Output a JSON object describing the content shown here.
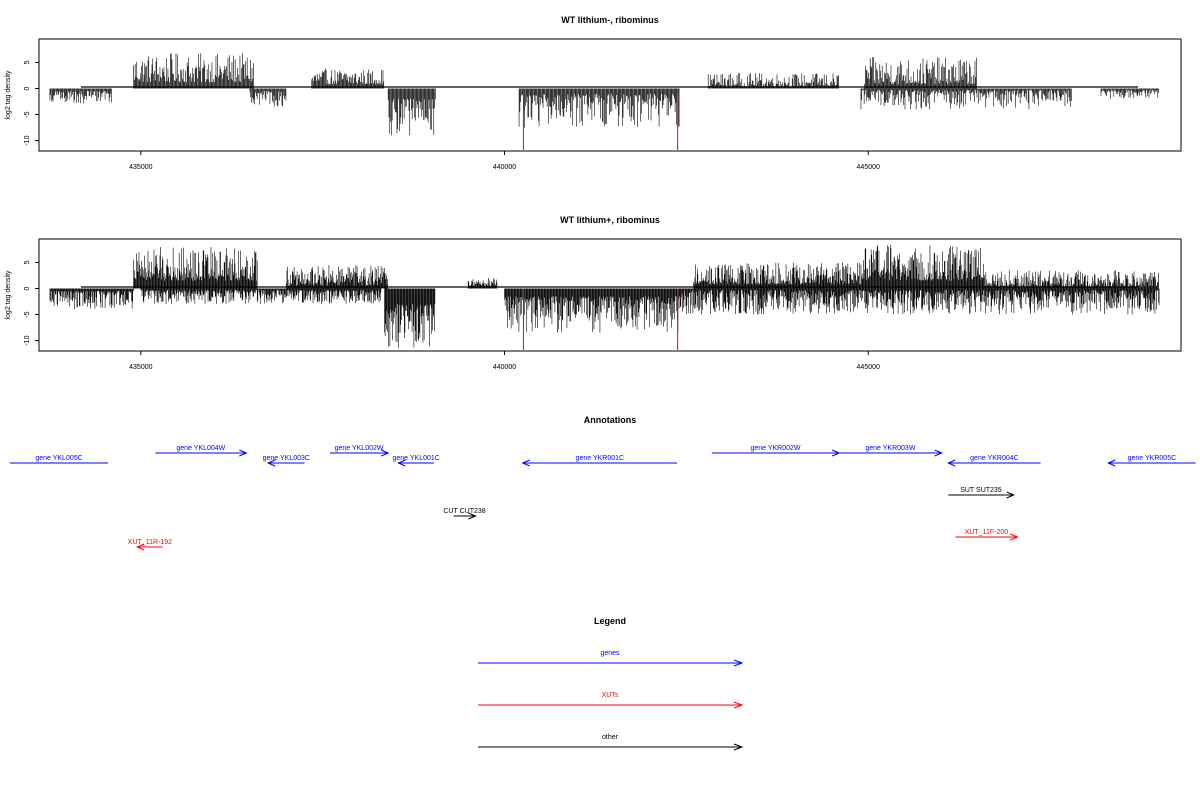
{
  "chart_data": [
    {
      "type": "bar",
      "title": "WT lithium-, ribominus",
      "ylabel": "log2 tag density",
      "xlim": [
        433600,
        449300
      ],
      "ylim": [
        -12,
        9.5
      ],
      "xticks": [
        435000,
        440000,
        445000
      ],
      "yticks": [
        5,
        0,
        -5,
        -10
      ],
      "x_tick_labels": [
        "435000",
        "440000",
        "445000"
      ],
      "y_tick_labels": [
        "5",
        "0",
        "-5",
        "-10"
      ],
      "profile": {
        "positive": [
          {
            "start": 434900,
            "end": 436550,
            "min": 1.2,
            "max": 6.8
          },
          {
            "start": 437350,
            "end": 438350,
            "min": 0.8,
            "max": 3.8
          },
          {
            "start": 442800,
            "end": 444600,
            "min": 0.4,
            "max": 3.0
          },
          {
            "start": 444950,
            "end": 446500,
            "min": 0.8,
            "max": 6.0
          }
        ],
        "negative": [
          {
            "start": 433750,
            "end": 434600,
            "min": 0.5,
            "max": 3.0
          },
          {
            "start": 436500,
            "end": 437000,
            "min": 0.5,
            "max": 3.5
          },
          {
            "start": 438400,
            "end": 439050,
            "min": 2.0,
            "max": 9.0
          },
          {
            "start": 440200,
            "end": 442400,
            "min": 1.0,
            "max": 7.5
          },
          {
            "start": 444900,
            "end": 447800,
            "min": 0.3,
            "max": 4.0
          },
          {
            "start": 448200,
            "end": 449000,
            "min": 0.3,
            "max": 2.0
          }
        ]
      },
      "red_markers": [
        {
          "x": 440260,
          "value": -11.8
        },
        {
          "x": 442380,
          "value": -11.8
        }
      ]
    },
    {
      "type": "bar",
      "title": "WT lithium+, ribominus",
      "ylabel": "log2 tag density",
      "xlim": [
        433600,
        449300
      ],
      "ylim": [
        -12,
        9.5
      ],
      "xticks": [
        435000,
        440000,
        445000
      ],
      "yticks": [
        5,
        0,
        -5,
        -10
      ],
      "x_tick_labels": [
        "435000",
        "440000",
        "445000"
      ],
      "y_tick_labels": [
        "5",
        "0",
        "-5",
        "-10"
      ],
      "profile": {
        "positive": [
          {
            "start": 434900,
            "end": 436600,
            "min": 1.5,
            "max": 8.0
          },
          {
            "start": 437000,
            "end": 438400,
            "min": 0.5,
            "max": 4.5
          },
          {
            "start": 439500,
            "end": 439900,
            "min": 0.5,
            "max": 2.0
          },
          {
            "start": 442600,
            "end": 444900,
            "min": 0.8,
            "max": 5.0
          },
          {
            "start": 444900,
            "end": 446600,
            "min": 1.5,
            "max": 8.5
          },
          {
            "start": 446600,
            "end": 449000,
            "min": 0.3,
            "max": 3.5
          }
        ],
        "negative": [
          {
            "start": 433750,
            "end": 434900,
            "min": 0.5,
            "max": 4.0
          },
          {
            "start": 435000,
            "end": 438300,
            "min": 0.3,
            "max": 3.0
          },
          {
            "start": 438350,
            "end": 439050,
            "min": 3.0,
            "max": 11.5
          },
          {
            "start": 440000,
            "end": 442400,
            "min": 1.5,
            "max": 8.5
          },
          {
            "start": 442400,
            "end": 449000,
            "min": 0.3,
            "max": 5.0
          }
        ]
      },
      "red_markers": [
        {
          "x": 440260,
          "value": -11.8
        },
        {
          "x": 442380,
          "value": -11.8
        }
      ]
    }
  ],
  "annotations": {
    "title": "Annotations",
    "features": [
      {
        "label": "gene YKL005C",
        "color": "#0000ff",
        "start": 433200,
        "end": 434550,
        "strand": "none",
        "row": 1
      },
      {
        "label": "gene YKL004W",
        "color": "#0000ff",
        "start": 435200,
        "end": 436450,
        "strand": "+",
        "row": 0
      },
      {
        "label": "gene YKL003C",
        "color": "#0000ff",
        "start": 436750,
        "end": 437250,
        "strand": "-",
        "row": 1
      },
      {
        "label": "gene YKL002W",
        "color": "#0000ff",
        "start": 437600,
        "end": 438400,
        "strand": "+",
        "row": 0
      },
      {
        "label": "gene YKL001C",
        "color": "#0000ff",
        "start": 438540,
        "end": 439030,
        "strand": "-",
        "row": 1
      },
      {
        "label": "gene YKR001C",
        "color": "#0000ff",
        "start": 440250,
        "end": 442370,
        "strand": "-",
        "row": 1
      },
      {
        "label": "gene YKR002W",
        "color": "#0000ff",
        "start": 442850,
        "end": 444600,
        "strand": "+",
        "row": 0
      },
      {
        "label": "gene YKR003W",
        "color": "#0000ff",
        "start": 444600,
        "end": 446010,
        "strand": "+",
        "row": 0
      },
      {
        "label": "gene YKR004C",
        "color": "#0000ff",
        "start": 446100,
        "end": 447370,
        "strand": "-",
        "row": 1
      },
      {
        "label": "gene YKR005C",
        "color": "#0000ff",
        "start": 448300,
        "end": 449500,
        "strand": "-",
        "row": 1
      },
      {
        "label": "SUT SUT235",
        "color": "#000000",
        "start": 446100,
        "end": 447000,
        "strand": "+",
        "row": 2
      },
      {
        "label": "CUT CUT238",
        "color": "#000000",
        "start": 439300,
        "end": 439600,
        "strand": "+",
        "row": 3
      },
      {
        "label": "XUT_11F-200",
        "color": "#ff0000",
        "start": 446200,
        "end": 447050,
        "strand": "+",
        "row": 4
      },
      {
        "label": "XUT_11R-192",
        "color": "#ff0000",
        "start": 434950,
        "end": 435300,
        "strand": "-",
        "row": 5
      }
    ]
  },
  "legend": {
    "title": "Legend",
    "items": [
      {
        "label": "genes",
        "color": "#0000ff"
      },
      {
        "label": "XUTs",
        "color": "#ff0000"
      },
      {
        "label": "other",
        "color": "#000000"
      }
    ]
  }
}
